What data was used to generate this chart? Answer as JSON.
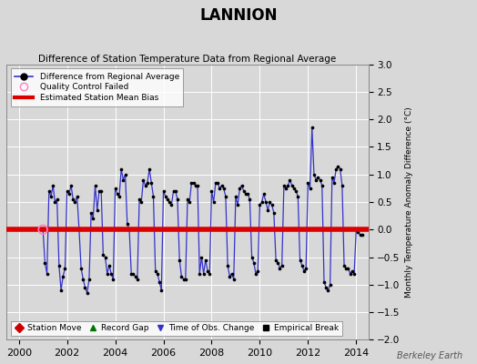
{
  "title": "LANNION",
  "subtitle": "Difference of Station Temperature Data from Regional Average",
  "ylabel": "Monthly Temperature Anomaly Difference (°C)",
  "xlim": [
    1999.5,
    2014.5
  ],
  "ylim": [
    -2.0,
    3.0
  ],
  "yticks": [
    -2.0,
    -1.5,
    -1.0,
    -0.5,
    0.0,
    0.5,
    1.0,
    1.5,
    2.0,
    2.5,
    3.0
  ],
  "xticks": [
    2000,
    2002,
    2004,
    2006,
    2008,
    2010,
    2012,
    2014
  ],
  "bias_value": 0.0,
  "background_color": "#d8d8d8",
  "plot_bg_color": "#d8d8d8",
  "line_color": "#3333cc",
  "dot_color": "#000000",
  "bias_color": "#dd0000",
  "watermark": "Berkeley Earth",
  "qc_fail_x": [
    2001.0
  ],
  "qc_fail_y": [
    0.0
  ],
  "data_x": [
    2001.0,
    2001.083,
    2001.167,
    2001.25,
    2001.333,
    2001.417,
    2001.5,
    2001.583,
    2001.667,
    2001.75,
    2001.833,
    2001.917,
    2002.0,
    2002.083,
    2002.167,
    2002.25,
    2002.333,
    2002.417,
    2002.5,
    2002.583,
    2002.667,
    2002.75,
    2002.833,
    2002.917,
    2003.0,
    2003.083,
    2003.167,
    2003.25,
    2003.333,
    2003.417,
    2003.5,
    2003.583,
    2003.667,
    2003.75,
    2003.833,
    2003.917,
    2004.0,
    2004.083,
    2004.167,
    2004.25,
    2004.333,
    2004.417,
    2004.5,
    2004.583,
    2004.667,
    2004.75,
    2004.833,
    2004.917,
    2005.0,
    2005.083,
    2005.167,
    2005.25,
    2005.333,
    2005.417,
    2005.5,
    2005.583,
    2005.667,
    2005.75,
    2005.833,
    2005.917,
    2006.0,
    2006.083,
    2006.167,
    2006.25,
    2006.333,
    2006.417,
    2006.5,
    2006.583,
    2006.667,
    2006.75,
    2006.833,
    2006.917,
    2007.0,
    2007.083,
    2007.167,
    2007.25,
    2007.333,
    2007.417,
    2007.5,
    2007.583,
    2007.667,
    2007.75,
    2007.833,
    2007.917,
    2008.0,
    2008.083,
    2008.167,
    2008.25,
    2008.333,
    2008.417,
    2008.5,
    2008.583,
    2008.667,
    2008.75,
    2008.833,
    2008.917,
    2009.0,
    2009.083,
    2009.167,
    2009.25,
    2009.333,
    2009.417,
    2009.5,
    2009.583,
    2009.667,
    2009.75,
    2009.833,
    2009.917,
    2010.0,
    2010.083,
    2010.167,
    2010.25,
    2010.333,
    2010.417,
    2010.5,
    2010.583,
    2010.667,
    2010.75,
    2010.833,
    2010.917,
    2011.0,
    2011.083,
    2011.167,
    2011.25,
    2011.333,
    2011.417,
    2011.5,
    2011.583,
    2011.667,
    2011.75,
    2011.833,
    2011.917,
    2012.0,
    2012.083,
    2012.167,
    2012.25,
    2012.333,
    2012.417,
    2012.5,
    2012.583,
    2012.667,
    2012.75,
    2012.833,
    2012.917,
    2013.0,
    2013.083,
    2013.167,
    2013.25,
    2013.333,
    2013.417,
    2013.5,
    2013.583,
    2013.667,
    2013.75,
    2013.833,
    2013.917,
    2014.0,
    2014.083,
    2014.167,
    2014.25
  ],
  "data_y": [
    0.0,
    -0.6,
    -0.8,
    0.7,
    0.6,
    0.8,
    0.5,
    0.55,
    -0.65,
    -1.1,
    -0.85,
    -0.7,
    0.7,
    0.65,
    0.8,
    0.55,
    0.5,
    0.6,
    0.0,
    -0.7,
    -0.9,
    -1.05,
    -1.15,
    -0.9,
    0.3,
    0.2,
    0.8,
    0.35,
    0.7,
    0.7,
    -0.45,
    -0.5,
    -0.8,
    -0.65,
    -0.8,
    -0.9,
    0.75,
    0.65,
    0.6,
    1.1,
    0.9,
    1.0,
    0.1,
    0.0,
    -0.8,
    -0.8,
    -0.85,
    -0.9,
    0.55,
    0.5,
    0.9,
    0.8,
    0.85,
    1.1,
    0.85,
    0.6,
    -0.75,
    -0.8,
    -0.95,
    -1.1,
    0.7,
    0.6,
    0.55,
    0.5,
    0.45,
    0.7,
    0.7,
    0.55,
    -0.55,
    -0.85,
    -0.9,
    -0.9,
    0.55,
    0.5,
    0.85,
    0.85,
    0.8,
    0.8,
    -0.8,
    -0.5,
    -0.8,
    -0.55,
    -0.75,
    -0.8,
    0.7,
    0.5,
    0.85,
    0.85,
    0.75,
    0.8,
    0.75,
    0.6,
    -0.65,
    -0.85,
    -0.8,
    -0.9,
    0.6,
    0.45,
    0.75,
    0.8,
    0.7,
    0.65,
    0.65,
    0.55,
    -0.5,
    -0.6,
    -0.8,
    -0.75,
    0.45,
    0.5,
    0.65,
    0.5,
    0.35,
    0.5,
    0.45,
    0.3,
    -0.55,
    -0.6,
    -0.7,
    -0.65,
    0.8,
    0.75,
    0.8,
    0.9,
    0.8,
    0.75,
    0.7,
    0.6,
    -0.55,
    -0.65,
    -0.75,
    -0.7,
    0.85,
    0.75,
    1.85,
    1.0,
    0.9,
    0.95,
    0.9,
    0.8,
    -0.95,
    -1.05,
    -1.1,
    -1.0,
    0.95,
    0.85,
    1.1,
    1.15,
    1.1,
    0.8,
    -0.65,
    -0.7,
    -0.7,
    -0.8,
    -0.75,
    -0.8,
    0.0,
    -0.05,
    -0.1,
    -0.1
  ]
}
